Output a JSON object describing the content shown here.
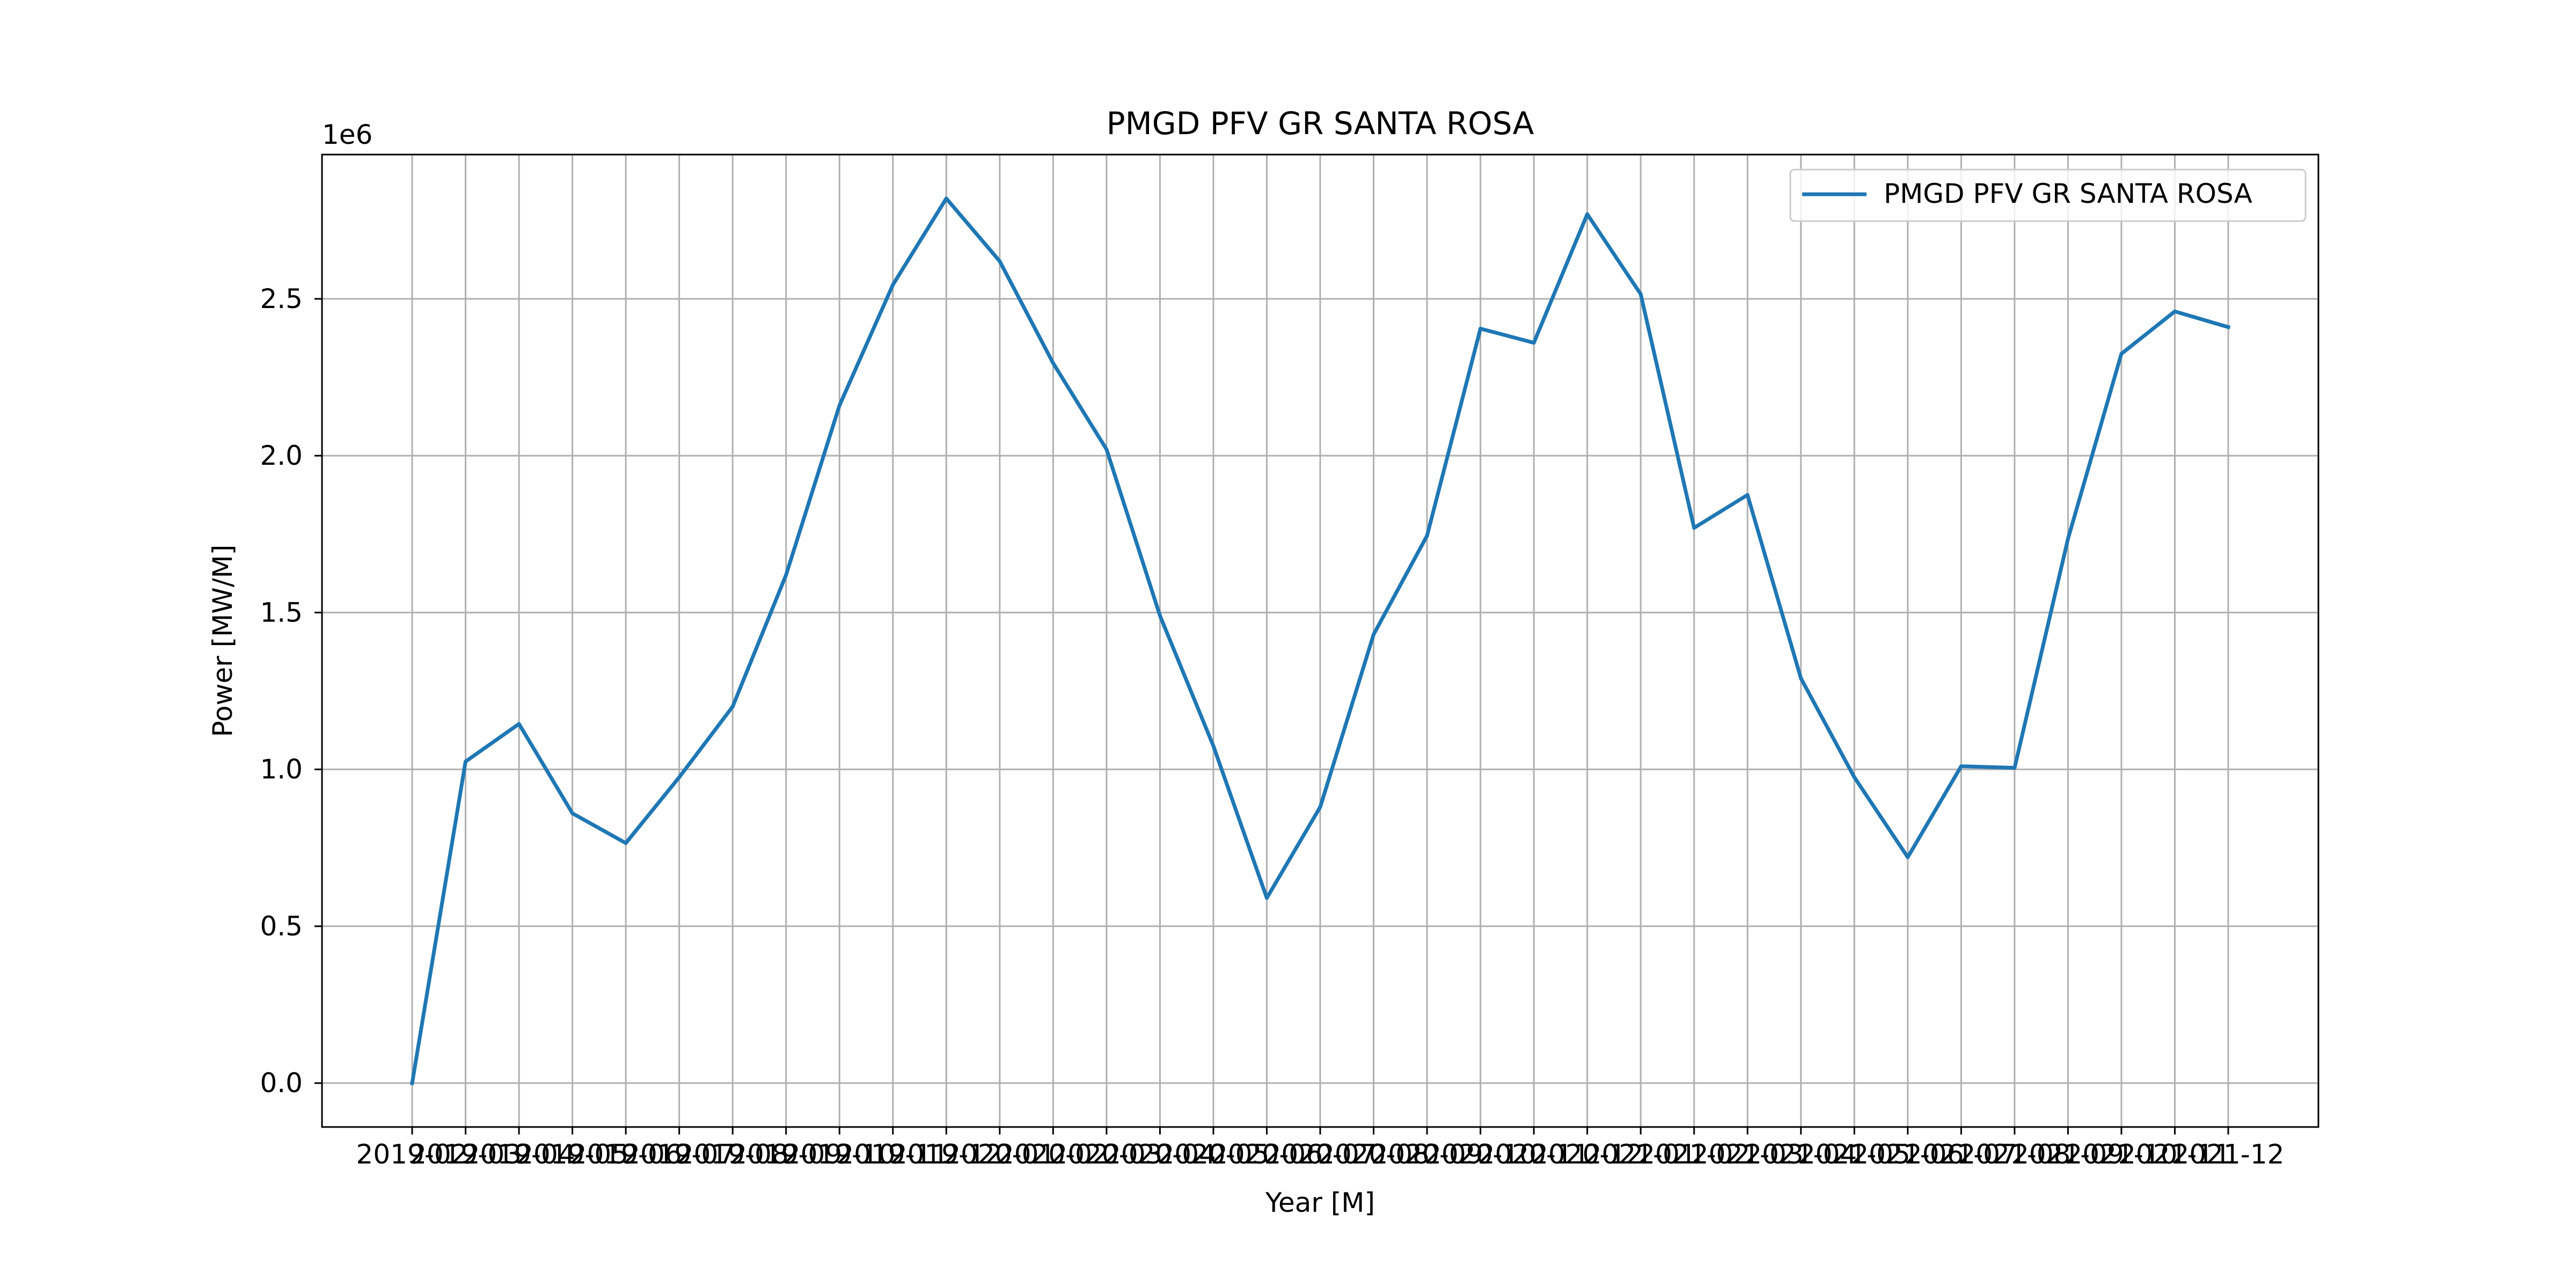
{
  "chart_data": {
    "type": "line",
    "title": "PMGD PFV GR SANTA ROSA",
    "xlabel": "Year [M]",
    "ylabel": "Power [MW/M]",
    "y_offset_label": "1e6",
    "x": [
      "2019-02",
      "2019-03",
      "2019-04",
      "2019-05",
      "2019-06",
      "2019-07",
      "2019-08",
      "2019-09",
      "2019-10",
      "2019-11",
      "2019-12",
      "2020-01",
      "2020-02",
      "2020-03",
      "2020-04",
      "2020-05",
      "2020-06",
      "2020-07",
      "2020-08",
      "2020-09",
      "2020-10",
      "2020-11",
      "2020-12",
      "2021-01",
      "2021-02",
      "2021-03",
      "2021-04",
      "2021-05",
      "2021-06",
      "2021-07",
      "2021-08",
      "2021-09",
      "2021-10",
      "2021-11",
      "2021-12"
    ],
    "series": [
      {
        "name": "PMGD PFV GR SANTA ROSA",
        "color": "#1f77b4",
        "values": [
          0,
          1025000,
          1145000,
          860000,
          765000,
          975000,
          1200000,
          1620000,
          2160000,
          2545000,
          2820000,
          2620000,
          2295000,
          2020000,
          1490000,
          1075000,
          590000,
          880000,
          1430000,
          1745000,
          2405000,
          2360000,
          2770000,
          2515000,
          1770000,
          1875000,
          1290000,
          975000,
          720000,
          1010000,
          1005000,
          1735000,
          2325000,
          2460000,
          2410000
        ]
      }
    ],
    "yticks": [
      0,
      0.5,
      1.0,
      1.5,
      2.0,
      2.5
    ],
    "ytick_labels": [
      "0.0",
      "0.5",
      "1.0",
      "1.5",
      "2.0",
      "2.5"
    ],
    "ylim": [
      -140000,
      2960000
    ],
    "grid": true,
    "legend_position": "top-right"
  }
}
